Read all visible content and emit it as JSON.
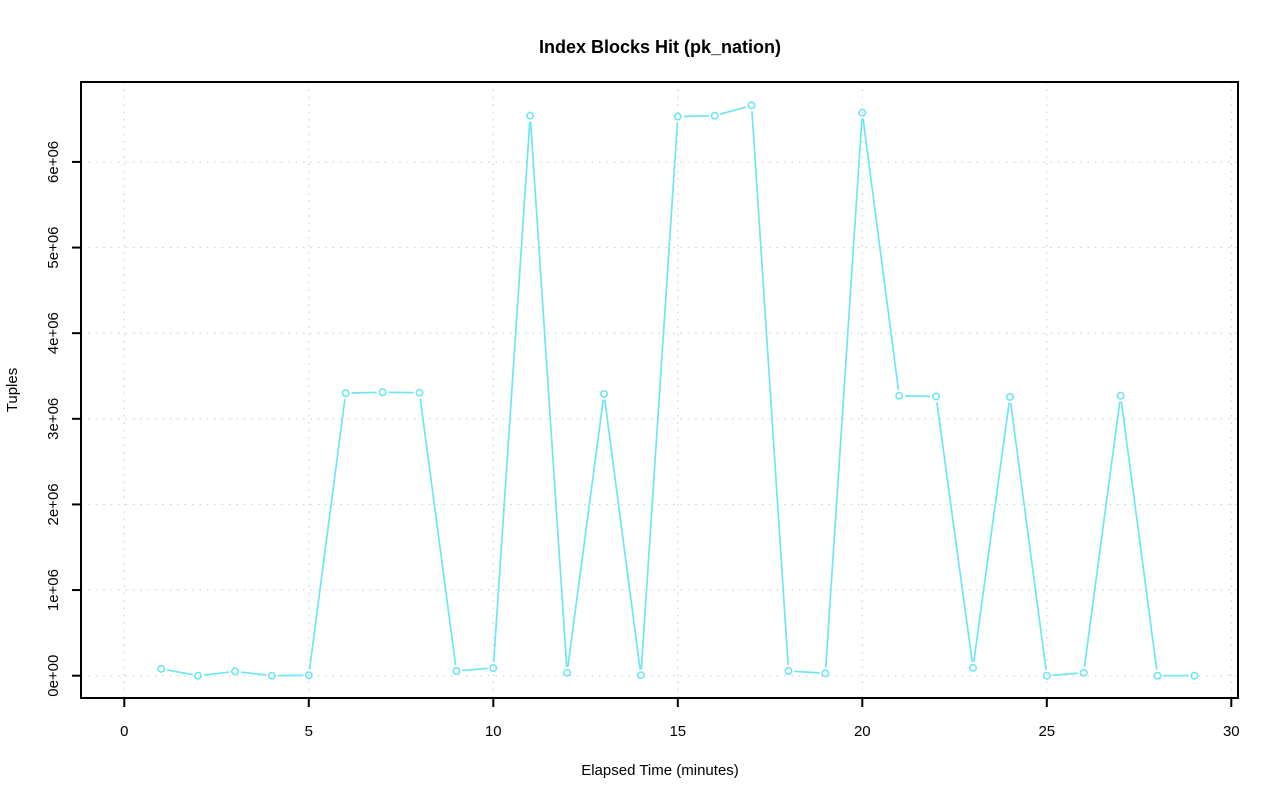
{
  "figure": {
    "title": "Index Blocks Hit (pk_nation)",
    "x_axis": {
      "label": "Elapsed Time (minutes)"
    },
    "y_axis": {
      "label": "Tuples"
    },
    "colors": {
      "series": "#6ee7f0",
      "grid": "#d2d2d2",
      "frame": "#000000",
      "background": "#ffffff"
    }
  },
  "chart_data": {
    "type": "line",
    "title": "Index Blocks Hit (pk_nation)",
    "xlabel": "Elapsed Time (minutes)",
    "ylabel": "Tuples",
    "x": [
      1,
      2,
      3,
      4,
      5,
      6,
      7,
      8,
      9,
      10,
      11,
      12,
      13,
      14,
      15,
      16,
      17,
      18,
      19,
      20,
      21,
      22,
      23,
      24,
      25,
      26,
      27,
      28,
      29
    ],
    "values": [
      80000,
      0,
      50000,
      0,
      5000,
      3300000,
      3310000,
      3305000,
      55000,
      90000,
      6540000,
      35000,
      3290000,
      5000,
      6530000,
      6540000,
      6660000,
      55000,
      28000,
      6575000,
      3270000,
      3260000,
      93000,
      3255000,
      0,
      35000,
      3270000,
      0,
      0
    ],
    "x_ticks": {
      "values": [
        0,
        5,
        10,
        15,
        20,
        25,
        30
      ],
      "labels": [
        "0",
        "5",
        "10",
        "15",
        "20",
        "25",
        "30"
      ]
    },
    "y_ticks": {
      "values": [
        0,
        1000000,
        2000000,
        3000000,
        4000000,
        5000000,
        6000000
      ],
      "labels": [
        "0e+00",
        "1e+06",
        "2e+06",
        "3e+06",
        "4e+06",
        "5e+06",
        "6e+06"
      ]
    },
    "xlim": [
      -1.2,
      30.2
    ],
    "ylim": [
      0,
      6930000
    ],
    "grid": "dotted both axes at labeled ticks",
    "legend": "none",
    "marker": "open-circle",
    "line_style": "point-to-point segments with gaps at markers (R type='b')"
  }
}
